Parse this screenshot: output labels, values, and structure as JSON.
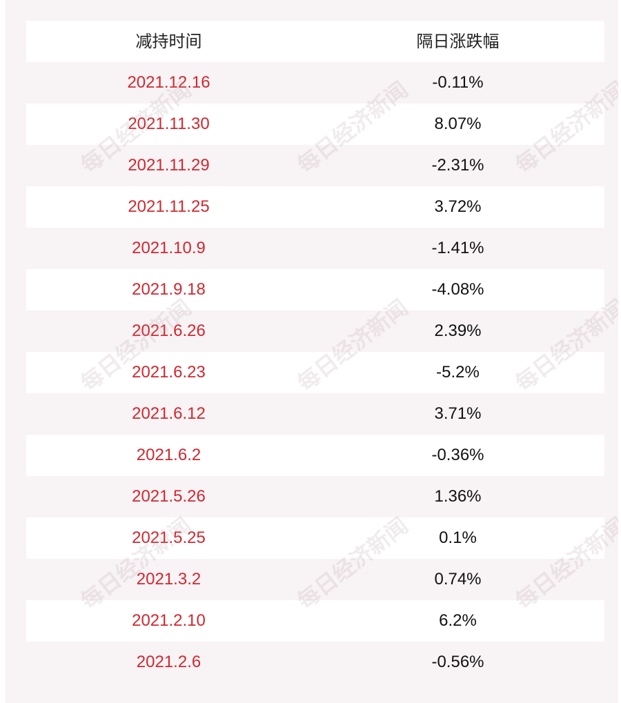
{
  "table": {
    "headers": [
      "减持时间",
      "隔日涨跌幅"
    ],
    "rows": [
      {
        "date": "2021.12.16",
        "change": "-0.11%"
      },
      {
        "date": "2021.11.30",
        "change": "8.07%"
      },
      {
        "date": "2021.11.29",
        "change": "-2.31%"
      },
      {
        "date": "2021.11.25",
        "change": "3.72%"
      },
      {
        "date": "2021.10.9",
        "change": "-1.41%"
      },
      {
        "date": "2021.9.18",
        "change": "-4.08%"
      },
      {
        "date": "2021.6.26",
        "change": "2.39%"
      },
      {
        "date": "2021.6.23",
        "change": "-5.2%"
      },
      {
        "date": "2021.6.12",
        "change": "3.71%"
      },
      {
        "date": "2021.6.2",
        "change": "-0.36%"
      },
      {
        "date": "2021.5.26",
        "change": "1.36%"
      },
      {
        "date": "2021.5.25",
        "change": "0.1%"
      },
      {
        "date": "2021.3.2",
        "change": "0.74%"
      },
      {
        "date": "2021.2.10",
        "change": "6.2%"
      },
      {
        "date": "2021.2.6",
        "change": "-0.56%"
      }
    ]
  },
  "watermark": {
    "text": "每日经济新闻"
  },
  "colors": {
    "background": "#f8f3f5",
    "date_text": "#d2272f",
    "value_text": "#111111"
  }
}
